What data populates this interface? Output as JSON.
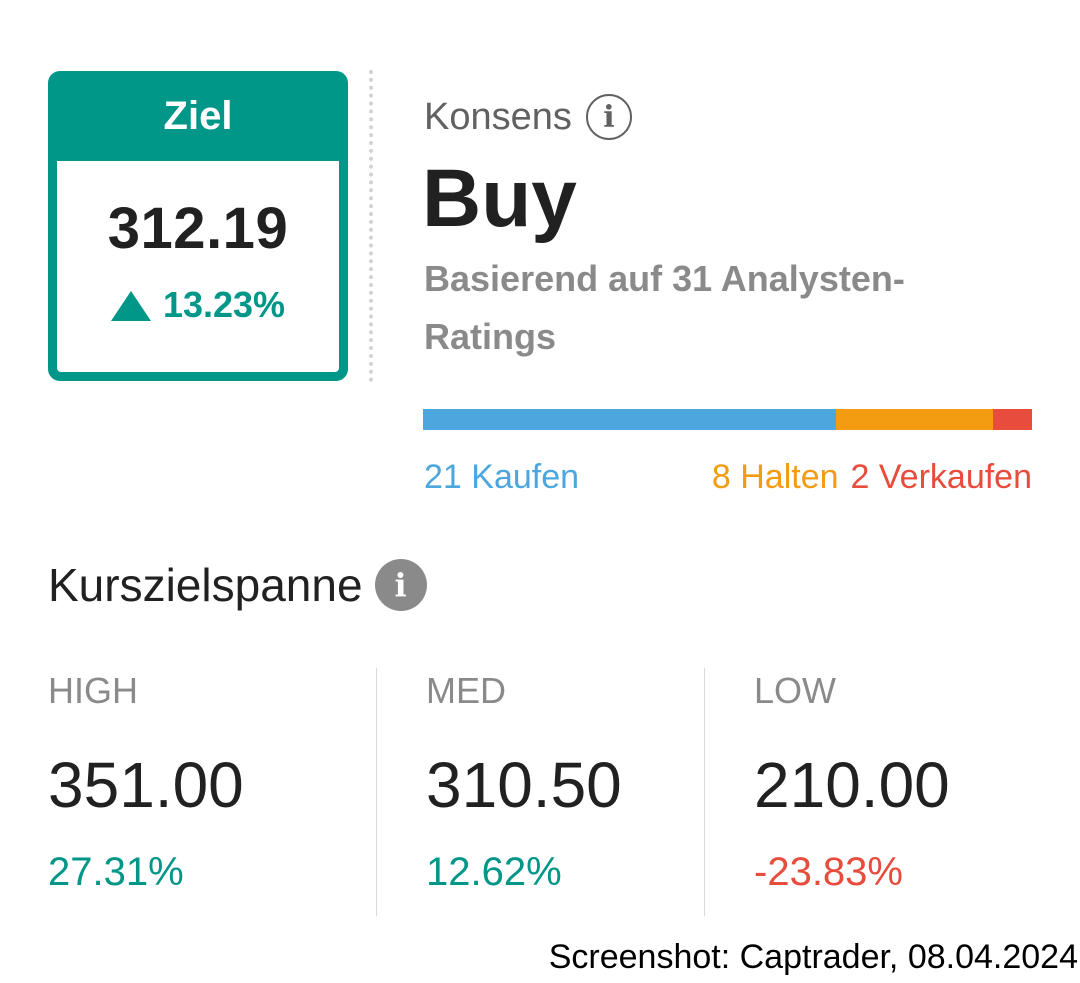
{
  "target": {
    "header": "Ziel",
    "price": "312.19",
    "change": "13.23%",
    "change_direction_icon": "triangle-up-icon",
    "color": "#009688"
  },
  "consensus": {
    "label": "Konsens",
    "info_icon": "info-outline-icon",
    "rating": "Buy",
    "subtitle": "Basierend auf 31 Analysten-Ratings",
    "distribution": [
      {
        "label": "21 Kaufen",
        "count": 21,
        "color": "#4da7df"
      },
      {
        "label": "8 Halten",
        "count": 8,
        "color": "#f39c12"
      },
      {
        "label": "2 Verkaufen",
        "count": 2,
        "color": "#e74c3c"
      }
    ]
  },
  "range": {
    "title": "Kurszielspanne",
    "info_icon": "info-filled-icon",
    "columns": [
      {
        "label": "HIGH",
        "value": "351.00",
        "pct": "27.31%",
        "tone": "positive"
      },
      {
        "label": "MED",
        "value": "310.50",
        "pct": "12.62%",
        "tone": "positive"
      },
      {
        "label": "LOW",
        "value": "210.00",
        "pct": "-23.83%",
        "tone": "negative"
      }
    ]
  },
  "caption": "Screenshot: Captrader, 08.04.2024"
}
